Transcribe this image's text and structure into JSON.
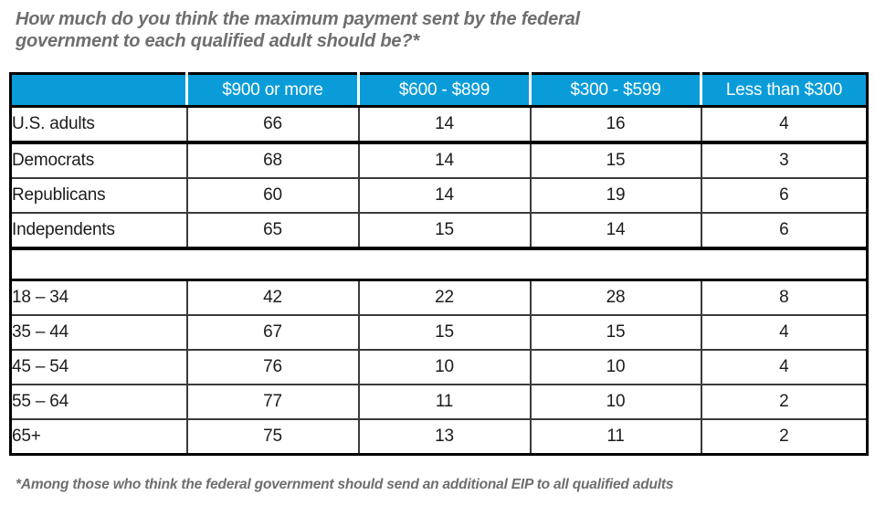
{
  "colors": {
    "header_bg": "#0a9cd9",
    "header_text": "#ffffff",
    "body_text": "#1c1c1c",
    "muted_text": "#6e6e6e",
    "grid_line": "#3a3a3a",
    "strong_line": "#000000"
  },
  "chart_data": {
    "type": "table",
    "title": "How much do you think the maximum payment sent by the federal government to each qualified adult should be?*",
    "columns": [
      "",
      "$900 or more",
      "$600 - $899",
      "$300 - $599",
      "Less than $300"
    ],
    "rows": [
      {
        "label": "U.S. adults",
        "values": [
          66,
          14,
          16,
          4
        ],
        "section_end": true
      },
      {
        "label": "Democrats",
        "values": [
          68,
          14,
          15,
          3
        ]
      },
      {
        "label": "Republicans",
        "values": [
          60,
          14,
          19,
          6
        ]
      },
      {
        "label": "Independents",
        "values": [
          65,
          15,
          14,
          6
        ],
        "section_end": true
      },
      {
        "type": "spacer"
      },
      {
        "label": "18 – 34",
        "values": [
          42,
          22,
          28,
          8
        ]
      },
      {
        "label": "35 – 44",
        "values": [
          67,
          15,
          15,
          4
        ]
      },
      {
        "label": "45 – 54",
        "values": [
          76,
          10,
          10,
          4
        ]
      },
      {
        "label": "55 – 64",
        "values": [
          77,
          11,
          10,
          2
        ]
      },
      {
        "label": "65+",
        "values": [
          75,
          13,
          11,
          2
        ]
      }
    ],
    "footnote": "*Among those who think the federal government should send an additional EIP to all qualified adults",
    "legend_position": "none",
    "grid": true
  }
}
